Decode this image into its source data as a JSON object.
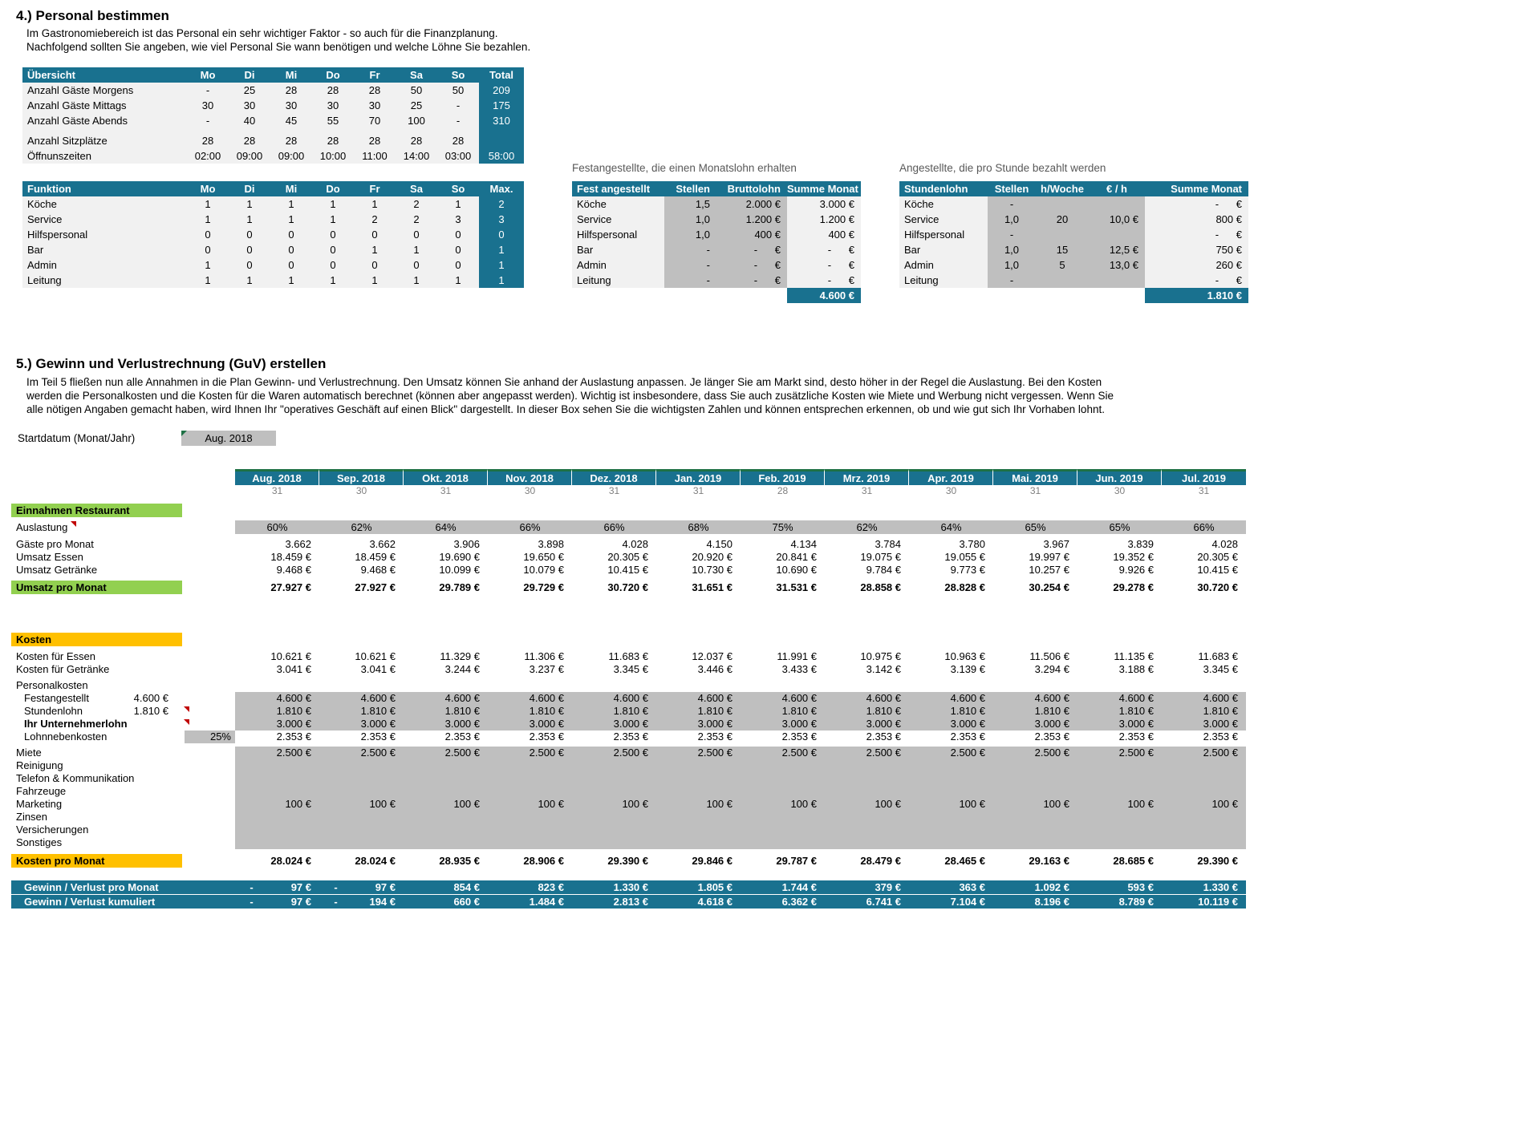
{
  "colors": {
    "header_teal": "#19718F",
    "accent_green": "#92D050",
    "accent_orange": "#FFC000",
    "input_gray": "#BFBFBF",
    "tab_green": "#1E7145",
    "comment_red": "#C00000"
  },
  "s4": {
    "title": "4.) Personal bestimmen",
    "desc": [
      "Im Gastronomiebereich ist das Personal ein sehr wichtiger Faktor - so auch für die Finanzplanung.",
      "Nachfolgend sollten Sie angeben, wie viel Personal Sie wann benötigen und welche Löhne Sie bezahlen."
    ],
    "uebersicht": {
      "title": "Übersicht",
      "days": [
        "Mo",
        "Di",
        "Mi",
        "Do",
        "Fr",
        "Sa",
        "So"
      ],
      "total_label": "Total",
      "rows": [
        {
          "label": "Anzahl Gäste Morgens",
          "values": [
            "-",
            "25",
            "28",
            "28",
            "28",
            "50",
            "50"
          ],
          "total": "209"
        },
        {
          "label": "Anzahl Gäste Mittags",
          "values": [
            "30",
            "30",
            "30",
            "30",
            "30",
            "25",
            "-"
          ],
          "total": "175"
        },
        {
          "label": "Anzahl Gäste Abends",
          "values": [
            "-",
            "40",
            "45",
            "55",
            "70",
            "100",
            "-"
          ],
          "total": "310"
        }
      ],
      "seats": {
        "label": "Anzahl Sitzplätze",
        "values": [
          "28",
          "28",
          "28",
          "28",
          "28",
          "28",
          "28"
        ],
        "total": ""
      },
      "hours": {
        "label": "Öffnunszeiten",
        "values": [
          "02:00",
          "09:00",
          "09:00",
          "10:00",
          "11:00",
          "14:00",
          "03:00"
        ],
        "total": "58:00"
      }
    },
    "funktion": {
      "title": "Funktion",
      "days": [
        "Mo",
        "Di",
        "Mi",
        "Do",
        "Fr",
        "Sa",
        "So"
      ],
      "max_label": "Max.",
      "rows": [
        {
          "label": "Köche",
          "values": [
            "1",
            "1",
            "1",
            "1",
            "1",
            "2",
            "1"
          ],
          "max": "2"
        },
        {
          "label": "Service",
          "values": [
            "1",
            "1",
            "1",
            "1",
            "2",
            "2",
            "3"
          ],
          "max": "3"
        },
        {
          "label": "Hilfspersonal",
          "values": [
            "0",
            "0",
            "0",
            "0",
            "0",
            "0",
            "0"
          ],
          "max": "0"
        },
        {
          "label": "Bar",
          "values": [
            "0",
            "0",
            "0",
            "0",
            "1",
            "1",
            "0"
          ],
          "max": "1"
        },
        {
          "label": "Admin",
          "values": [
            "1",
            "0",
            "0",
            "0",
            "0",
            "0",
            "0"
          ],
          "max": "1"
        },
        {
          "label": "Leitung",
          "values": [
            "1",
            "1",
            "1",
            "1",
            "1",
            "1",
            "1"
          ],
          "max": "1"
        }
      ]
    },
    "fest": {
      "caption": "Festangestellte, die einen Monatslohn erhalten",
      "headers": [
        "Fest angestellt",
        "Stellen",
        "Bruttolohn",
        "Summe Monat"
      ],
      "rows": [
        {
          "label": "Köche",
          "stellen": "1,5",
          "brutto": "2.000 €",
          "summe": "3.000 €"
        },
        {
          "label": "Service",
          "stellen": "1,0",
          "brutto": "1.200 €",
          "summe": "1.200 €"
        },
        {
          "label": "Hilfspersonal",
          "stellen": "1,0",
          "brutto": "400 €",
          "summe": "400 €"
        },
        {
          "label": "Bar",
          "stellen": "-",
          "brutto": "-      €",
          "summe": "-      €"
        },
        {
          "label": "Admin",
          "stellen": "-",
          "brutto": "-      €",
          "summe": "-      €"
        },
        {
          "label": "Leitung",
          "stellen": "-",
          "brutto": "-      €",
          "summe": "-      €"
        }
      ],
      "total": "4.600 €"
    },
    "stunden": {
      "caption": "Angestellte, die pro Stunde bezahlt werden",
      "headers": [
        "Stundenlohn",
        "Stellen",
        "h/Woche",
        "€ / h",
        "Summe Monat"
      ],
      "rows": [
        {
          "label": "Köche",
          "stellen": "-",
          "hwoche": "",
          "eurh": "",
          "summe": "-      €"
        },
        {
          "label": "Service",
          "stellen": "1,0",
          "hwoche": "20",
          "eurh": "10,0 €",
          "summe": "800 €"
        },
        {
          "label": "Hilfspersonal",
          "stellen": "-",
          "hwoche": "",
          "eurh": "",
          "summe": "-      €"
        },
        {
          "label": "Bar",
          "stellen": "1,0",
          "hwoche": "15",
          "eurh": "12,5 €",
          "summe": "750 €"
        },
        {
          "label": "Admin",
          "stellen": "1,0",
          "hwoche": "5",
          "eurh": "13,0 €",
          "summe": "260 €"
        },
        {
          "label": "Leitung",
          "stellen": "-",
          "hwoche": "",
          "eurh": "",
          "summe": "-      €"
        }
      ],
      "total": "1.810 €"
    }
  },
  "s5": {
    "title": "5.) Gewinn und Verlustrechnung (GuV) erstellen",
    "desc": "Im Teil 5 fließen nun alle Annahmen in die Plan Gewinn- und Verlustrechnung. Den Umsatz können Sie anhand der Auslastung anpassen. Je länger Sie am Markt sind, desto höher in der Regel die Auslastung. Bei den Kosten werden die Personalkosten und die Kosten für die Waren automatisch berechnet (können aber angepasst werden). Wichtig ist insbesondere, dass Sie auch zusätzliche Kosten wie Miete und Werbung nicht vergessen. Wenn Sie alle nötigen Angaben gemacht haben, wird Ihnen Ihr \"operatives Geschäft auf einen Blick\" dargestellt. In dieser Box sehen Sie die wichtigsten Zahlen und können entsprechen erkennen, ob und wie gut sich Ihr Vorhaben lohnt.",
    "startdatum_label": "Startdatum (Monat/Jahr)",
    "startdatum_value": "Aug. 2018",
    "guv": {
      "months": [
        "Aug. 2018",
        "Sep. 2018",
        "Okt. 2018",
        "Nov. 2018",
        "Dez. 2018",
        "Jan. 2019",
        "Feb. 2019",
        "Mrz. 2019",
        "Apr. 2019",
        "Mai. 2019",
        "Jun. 2019",
        "Jul. 2019"
      ],
      "days": [
        "31",
        "30",
        "31",
        "30",
        "31",
        "31",
        "28",
        "31",
        "30",
        "31",
        "30",
        "31"
      ],
      "labels": {
        "einnahmen": "Einnahmen Restaurant",
        "auslastung": "Auslastung",
        "gaeste": "Gäste pro Monat",
        "umsatz_essen": "Umsatz Essen",
        "umsatz_getraenke": "Umsatz Getränke",
        "umsatz_monat": "Umsatz pro Monat",
        "kosten": "Kosten",
        "kosten_essen": "Kosten für Essen",
        "kosten_getraenke": "Kosten für Getränke",
        "personalkosten": "Personalkosten",
        "festangestellt": "Festangestellt",
        "stundenlohn": "Stundenlohn",
        "unternehmerlohn": "Ihr Unternehmerlohn",
        "lohnnebenkosten": "Lohnnebenkosten",
        "miete": "Miete",
        "reinigung": "Reinigung",
        "telefon": "Telefon & Kommunikation",
        "fahrzeuge": "Fahrzeuge",
        "marketing": "Marketing",
        "zinsen": "Zinsen",
        "versicherungen": "Versicherungen",
        "sonstiges": "Sonstiges",
        "kosten_monat": "Kosten pro Monat",
        "gewinn_monat": "Gewinn / Verlust pro Monat",
        "gewinn_kumuliert": "Gewinn / Verlust kumuliert"
      },
      "aux": {
        "festangestellt": "4.600 €",
        "stundenlohn": "1.810 €",
        "lohnnebenkosten": "25%"
      },
      "data": {
        "auslastung": [
          "60%",
          "62%",
          "64%",
          "66%",
          "66%",
          "68%",
          "75%",
          "62%",
          "64%",
          "65%",
          "65%",
          "66%"
        ],
        "gaeste": [
          "3.662",
          "3.662",
          "3.906",
          "3.898",
          "4.028",
          "4.150",
          "4.134",
          "3.784",
          "3.780",
          "3.967",
          "3.839",
          "4.028"
        ],
        "umsatz_essen": [
          "18.459 €",
          "18.459 €",
          "19.690 €",
          "19.650 €",
          "20.305 €",
          "20.920 €",
          "20.841 €",
          "19.075 €",
          "19.055 €",
          "19.997 €",
          "19.352 €",
          "20.305 €"
        ],
        "umsatz_getraenke": [
          "9.468 €",
          "9.468 €",
          "10.099 €",
          "10.079 €",
          "10.415 €",
          "10.730 €",
          "10.690 €",
          "9.784 €",
          "9.773 €",
          "10.257 €",
          "9.926 €",
          "10.415 €"
        ],
        "umsatz_monat": [
          "27.927 €",
          "27.927 €",
          "29.789 €",
          "29.729 €",
          "30.720 €",
          "31.651 €",
          "31.531 €",
          "28.858 €",
          "28.828 €",
          "30.254 €",
          "29.278 €",
          "30.720 €"
        ],
        "kosten_essen": [
          "10.621 €",
          "10.621 €",
          "11.329 €",
          "11.306 €",
          "11.683 €",
          "12.037 €",
          "11.991 €",
          "10.975 €",
          "10.963 €",
          "11.506 €",
          "11.135 €",
          "11.683 €"
        ],
        "kosten_getraenke": [
          "3.041 €",
          "3.041 €",
          "3.244 €",
          "3.237 €",
          "3.345 €",
          "3.446 €",
          "3.433 €",
          "3.142 €",
          "3.139 €",
          "3.294 €",
          "3.188 €",
          "3.345 €"
        ],
        "festangestellt": [
          "4.600 €",
          "4.600 €",
          "4.600 €",
          "4.600 €",
          "4.600 €",
          "4.600 €",
          "4.600 €",
          "4.600 €",
          "4.600 €",
          "4.600 €",
          "4.600 €",
          "4.600 €"
        ],
        "stundenlohn": [
          "1.810 €",
          "1.810 €",
          "1.810 €",
          "1.810 €",
          "1.810 €",
          "1.810 €",
          "1.810 €",
          "1.810 €",
          "1.810 €",
          "1.810 €",
          "1.810 €",
          "1.810 €"
        ],
        "unternehmerlohn": [
          "3.000 €",
          "3.000 €",
          "3.000 €",
          "3.000 €",
          "3.000 €",
          "3.000 €",
          "3.000 €",
          "3.000 €",
          "3.000 €",
          "3.000 €",
          "3.000 €",
          "3.000 €"
        ],
        "lohnnebenkosten": [
          "2.353 €",
          "2.353 €",
          "2.353 €",
          "2.353 €",
          "2.353 €",
          "2.353 €",
          "2.353 €",
          "2.353 €",
          "2.353 €",
          "2.353 €",
          "2.353 €",
          "2.353 €"
        ],
        "miete": [
          "2.500 €",
          "2.500 €",
          "2.500 €",
          "2.500 €",
          "2.500 €",
          "2.500 €",
          "2.500 €",
          "2.500 €",
          "2.500 €",
          "2.500 €",
          "2.500 €",
          "2.500 €"
        ],
        "marketing": [
          "100 €",
          "100 €",
          "100 €",
          "100 €",
          "100 €",
          "100 €",
          "100 €",
          "100 €",
          "100 €",
          "100 €",
          "100 €",
          "100 €"
        ],
        "kosten_monat": [
          "28.024 €",
          "28.024 €",
          "28.935 €",
          "28.906 €",
          "29.390 €",
          "29.846 €",
          "29.787 €",
          "28.479 €",
          "28.465 €",
          "29.163 €",
          "28.685 €",
          "29.390 €"
        ],
        "gewinn_monat": [
          "-             97 €",
          "-             97 €",
          "854 €",
          "823 €",
          "1.330 €",
          "1.805 €",
          "1.744 €",
          "379 €",
          "363 €",
          "1.092 €",
          "593 €",
          "1.330 €"
        ],
        "gewinn_kumuliert": [
          "-             97 €",
          "-           194 €",
          "660 €",
          "1.484 €",
          "2.813 €",
          "4.618 €",
          "6.362 €",
          "6.741 €",
          "7.104 €",
          "8.196 €",
          "8.789 €",
          "10.119 €"
        ]
      }
    }
  }
}
